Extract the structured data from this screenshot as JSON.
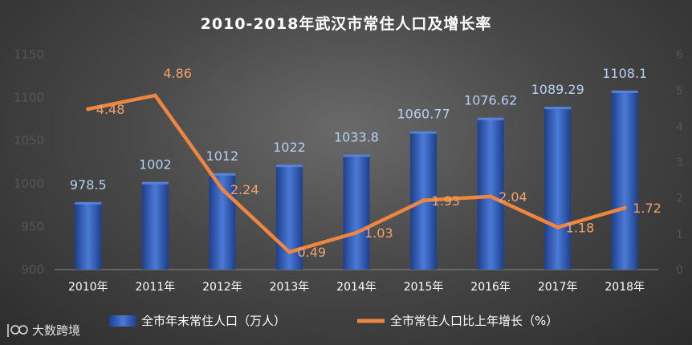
{
  "chart_data": {
    "type": "bar+line",
    "title": "2010-2018年武汉市常住人口及增长率",
    "categories": [
      "2010年",
      "2011年",
      "2012年",
      "2013年",
      "2014年",
      "2015年",
      "2016年",
      "2017年",
      "2018年"
    ],
    "series": [
      {
        "name": "全市年末常住人口（万人）",
        "type": "bar",
        "axis": "left",
        "values": [
          978.5,
          1002,
          1012,
          1022,
          1033.8,
          1060.77,
          1076.62,
          1089.29,
          1108.1
        ],
        "labels": [
          "978.5",
          "1002",
          "1012",
          "1022",
          "1033.8",
          "1060.77",
          "1076.62",
          "1089.29",
          "1108.1"
        ],
        "color": "#3f6dc8"
      },
      {
        "name": "全市常住人口比上年增长（%）",
        "type": "line",
        "axis": "right",
        "values": [
          4.48,
          4.86,
          2.24,
          0.49,
          1.03,
          1.93,
          2.04,
          1.18,
          1.72
        ],
        "labels": [
          "4.48",
          "4.86",
          "2.24",
          "0.49",
          "1.03",
          "1.93",
          "2.04",
          "1.18",
          "1.72"
        ],
        "color": "#ee8640"
      }
    ],
    "y_left": {
      "min": 900,
      "max": 1150,
      "ticks": [
        "900",
        "950",
        "1000",
        "1050",
        "1100",
        "1150"
      ]
    },
    "y_right": {
      "min": 0,
      "max": 6,
      "ticks": [
        "0",
        "1",
        "2",
        "3",
        "4",
        "5",
        "6"
      ]
    },
    "grid": false,
    "legend_position": "bottom"
  },
  "watermark": {
    "text": "大数跨境"
  }
}
